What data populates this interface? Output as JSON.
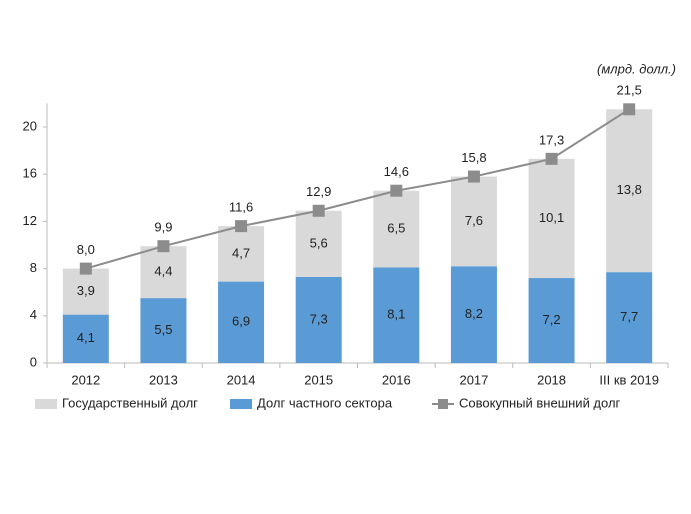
{
  "chart_data": {
    "type": "bar",
    "annotation": "(млрд. долл.)",
    "categories": [
      "2012",
      "2013",
      "2014",
      "2015",
      "2016",
      "2017",
      "2018",
      "III кв 2019"
    ],
    "series": [
      {
        "name": "Государственный долг",
        "type": "bar",
        "color": "#d9d9d9",
        "values": [
          3.9,
          4.4,
          4.7,
          5.6,
          6.5,
          7.6,
          10.1,
          13.8
        ],
        "value_labels": [
          "3,9",
          "4,4",
          "4,7",
          "5,6",
          "6,5",
          "7,6",
          "10,1",
          "13,8"
        ]
      },
      {
        "name": "Долг частного сектора",
        "type": "bar",
        "color": "#5b9bd5",
        "values": [
          4.1,
          5.5,
          6.9,
          7.3,
          8.1,
          8.2,
          7.2,
          7.7
        ],
        "value_labels": [
          "4,1",
          "5,5",
          "6,9",
          "7,3",
          "8,1",
          "8,2",
          "7,2",
          "7,7"
        ]
      },
      {
        "name": "Совокупный внешний долг",
        "type": "line",
        "color": "#8c8c8c",
        "values": [
          8.0,
          9.9,
          11.6,
          12.9,
          14.6,
          15.8,
          17.3,
          21.5
        ],
        "value_labels": [
          "8,0",
          "9,9",
          "11,6",
          "12,9",
          "14,6",
          "15,8",
          "17,3",
          "21,5"
        ]
      }
    ],
    "ylim": [
      0,
      22
    ],
    "yticks": [
      0,
      4,
      8,
      12,
      16,
      20
    ],
    "grid": false,
    "legend": "bottom"
  }
}
